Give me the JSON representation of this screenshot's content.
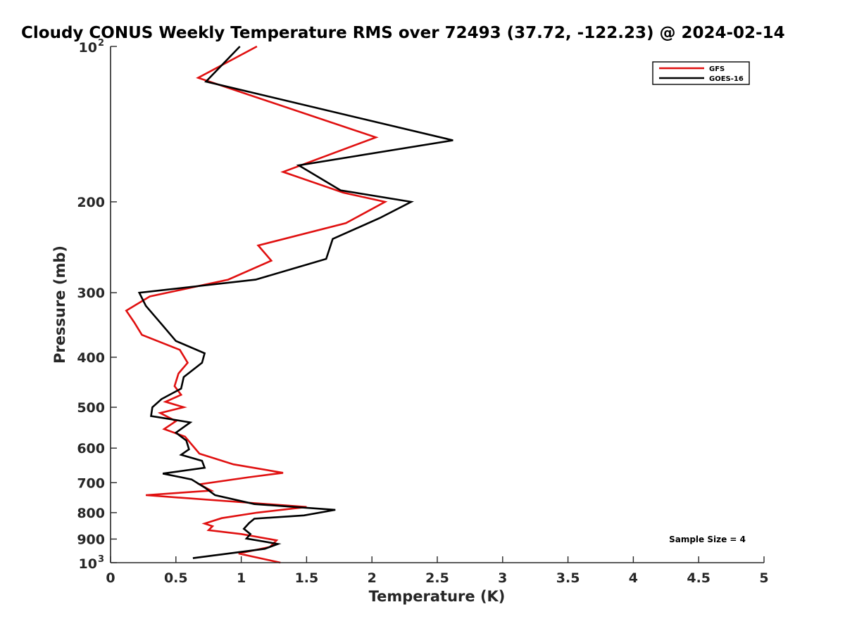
{
  "chart_data": {
    "type": "line",
    "title": "Cloudy CONUS Weekly Temperature RMS over 72493 (37.72, -122.23) @ 2024-02-14",
    "xlabel": "Temperature (K)",
    "ylabel": "Pressure (mb)",
    "xlim": [
      0,
      5
    ],
    "ylim": [
      100,
      1000
    ],
    "y_scale": "log",
    "y_reversed": true,
    "grid": false,
    "legend_position": "top-right",
    "x_ticks": [
      "0",
      "0.5",
      "1",
      "1.5",
      "2",
      "2.5",
      "3",
      "3.5",
      "4",
      "4.5",
      "5"
    ],
    "y_ticks": [
      {
        "value": 100,
        "base": "10",
        "exp": "2"
      },
      {
        "value": 200,
        "label": "200"
      },
      {
        "value": 300,
        "label": "300"
      },
      {
        "value": 400,
        "label": "400"
      },
      {
        "value": 500,
        "label": "500"
      },
      {
        "value": 600,
        "label": "600"
      },
      {
        "value": 700,
        "label": "700"
      },
      {
        "value": 800,
        "label": "800"
      },
      {
        "value": 900,
        "label": "900"
      },
      {
        "value": 1000,
        "base": "10",
        "exp": "3"
      }
    ],
    "series": [
      {
        "name": "GFS",
        "color": "#e01010",
        "points": [
          [
            1.12,
            100
          ],
          [
            0.67,
            115
          ],
          [
            2.03,
            150
          ],
          [
            1.32,
            175
          ],
          [
            1.78,
            192
          ],
          [
            2.1,
            200
          ],
          [
            1.8,
            220
          ],
          [
            1.13,
            243
          ],
          [
            1.23,
            260
          ],
          [
            0.9,
            283
          ],
          [
            0.3,
            305
          ],
          [
            0.12,
            325
          ],
          [
            0.18,
            342
          ],
          [
            0.24,
            362
          ],
          [
            0.53,
            387
          ],
          [
            0.59,
            410
          ],
          [
            0.52,
            430
          ],
          [
            0.49,
            455
          ],
          [
            0.54,
            473
          ],
          [
            0.42,
            488
          ],
          [
            0.56,
            500
          ],
          [
            0.38,
            513
          ],
          [
            0.5,
            532
          ],
          [
            0.41,
            551
          ],
          [
            0.57,
            570
          ],
          [
            0.68,
            615
          ],
          [
            0.94,
            645
          ],
          [
            1.32,
            670
          ],
          [
            1.06,
            683
          ],
          [
            0.68,
            705
          ],
          [
            0.77,
            725
          ],
          [
            0.27,
            740
          ],
          [
            1.5,
            780
          ],
          [
            1.12,
            800
          ],
          [
            0.85,
            820
          ],
          [
            0.72,
            840
          ],
          [
            0.78,
            850
          ],
          [
            0.75,
            865
          ],
          [
            1.0,
            880
          ],
          [
            1.27,
            905
          ],
          [
            1.22,
            932
          ],
          [
            0.98,
            960
          ],
          [
            1.3,
            1000
          ]
        ]
      },
      {
        "name": "GOES-16",
        "color": "#000000",
        "points": [
          [
            0.99,
            100
          ],
          [
            0.73,
            117
          ],
          [
            2.62,
            152
          ],
          [
            1.44,
            170
          ],
          [
            1.76,
            190
          ],
          [
            2.3,
            200
          ],
          [
            2.06,
            215
          ],
          [
            1.7,
            236
          ],
          [
            1.65,
            258
          ],
          [
            1.11,
            283
          ],
          [
            0.22,
            300
          ],
          [
            0.27,
            318
          ],
          [
            0.39,
            345
          ],
          [
            0.5,
            372
          ],
          [
            0.72,
            393
          ],
          [
            0.7,
            410
          ],
          [
            0.56,
            437
          ],
          [
            0.54,
            460
          ],
          [
            0.39,
            482
          ],
          [
            0.32,
            500
          ],
          [
            0.31,
            520
          ],
          [
            0.61,
            535
          ],
          [
            0.5,
            560
          ],
          [
            0.58,
            580
          ],
          [
            0.6,
            603
          ],
          [
            0.54,
            618
          ],
          [
            0.7,
            635
          ],
          [
            0.72,
            655
          ],
          [
            0.4,
            672
          ],
          [
            0.62,
            690
          ],
          [
            0.72,
            715
          ],
          [
            0.8,
            740
          ],
          [
            1.1,
            770
          ],
          [
            1.72,
            790
          ],
          [
            1.48,
            810
          ],
          [
            1.1,
            822
          ],
          [
            1.06,
            838
          ],
          [
            1.02,
            860
          ],
          [
            1.07,
            880
          ],
          [
            1.04,
            898
          ],
          [
            1.28,
            920
          ],
          [
            1.18,
            940
          ],
          [
            0.63,
            980
          ]
        ]
      }
    ],
    "annotations": [
      "Sample Size = 4"
    ]
  }
}
